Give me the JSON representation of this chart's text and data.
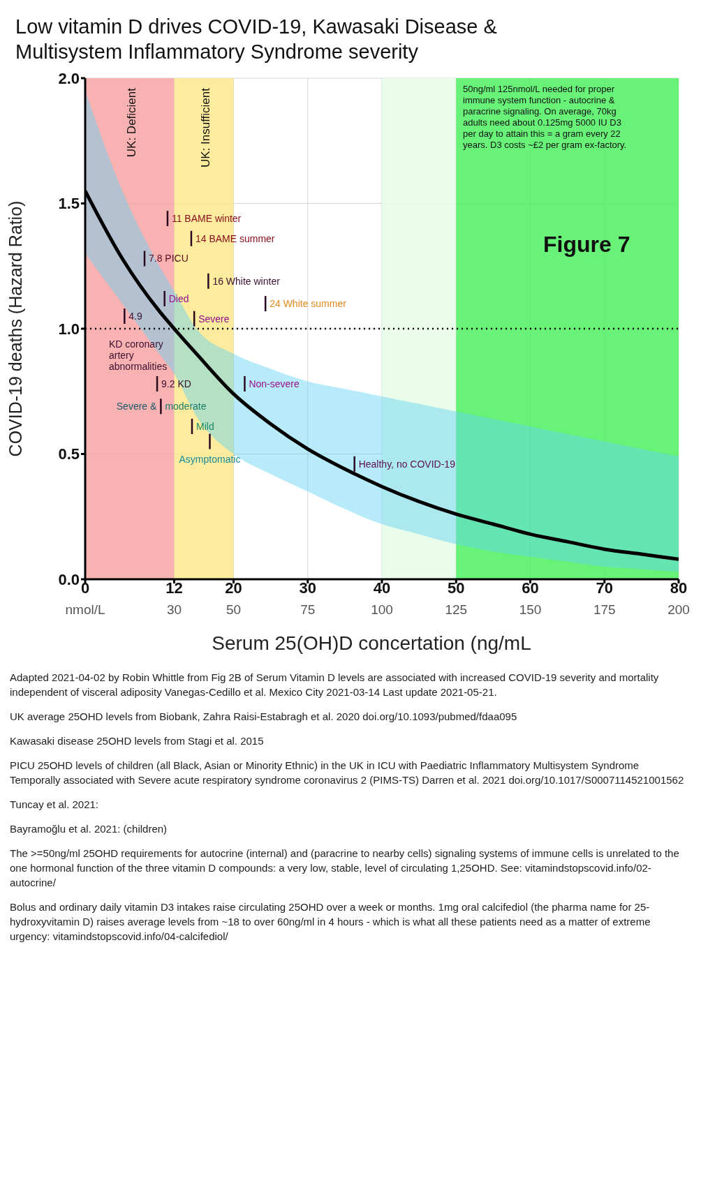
{
  "chart_data": {
    "type": "line",
    "title": "Low vitamin D drives COVID-19, Kawasaki Disease & Multisystem Inflammatory Syndrome severity",
    "xlabel": "Serum 25(OH)D concertation (ng/mL",
    "ylabel": "COVID-19 deaths (Hazard Ratio)",
    "xlim": [
      0,
      80
    ],
    "xticks": [
      0,
      12,
      20,
      30,
      40,
      50,
      60,
      70,
      80
    ],
    "x2lim": [
      0,
      200
    ],
    "x2ticks": [
      {
        "value": 0,
        "label": "nmol/L"
      },
      30,
      50,
      75,
      100,
      125,
      150,
      175,
      200
    ],
    "ylim": [
      0,
      2
    ],
    "yticks": [
      {
        "value": 0,
        "label": "0.0"
      },
      {
        "value": 0.5,
        "label": "0.5"
      },
      {
        "value": 1,
        "label": "1.0"
      },
      {
        "value": 1.5,
        "label": "1.5"
      },
      {
        "value": 2,
        "label": "2.0"
      }
    ],
    "grid": true,
    "marker": "none",
    "line_style": "solid",
    "series": [
      {
        "color": "#000000",
        "x": [
          0,
          5,
          10,
          12,
          15,
          20,
          25,
          30,
          35,
          40,
          45,
          50,
          55,
          60,
          65,
          70,
          75,
          80
        ],
        "values": [
          1.55,
          1.28,
          1.07,
          1.0,
          0.9,
          0.74,
          0.62,
          0.52,
          0.44,
          0.37,
          0.31,
          0.26,
          0.22,
          0.18,
          0.15,
          0.12,
          0.1,
          0.08
        ],
        "lower": [
          1.3,
          1.1,
          0.9,
          0.82,
          0.65,
          0.5,
          0.42,
          0.35,
          0.28,
          0.22,
          0.18,
          0.14,
          0.11,
          0.09,
          0.07,
          0.05,
          0.04,
          0.03
        ],
        "upper": [
          1.95,
          1.55,
          1.25,
          1.15,
          1.0,
          0.9,
          0.84,
          0.79,
          0.76,
          0.73,
          0.7,
          0.67,
          0.64,
          0.61,
          0.58,
          0.55,
          0.52,
          0.49
        ]
      }
    ],
    "bands": [
      {
        "axis": "x",
        "from": 0,
        "to": 12,
        "label": "UK: Deficient",
        "color": "#f8a5a5"
      },
      {
        "axis": "x",
        "from": 12,
        "to": 20,
        "label": "UK: Insufficient",
        "color": "#fde98c"
      },
      {
        "axis": "x",
        "from": 40,
        "to": 50,
        "color": "#e6fbe6"
      },
      {
        "axis": "x",
        "from": 50,
        "to": 80,
        "color": "#4ef060"
      }
    ],
    "ref_lines": [
      {
        "axis": "y",
        "value": 1,
        "line_style": "dotted",
        "color": "#000000"
      }
    ],
    "annotations": [
      "50ng/ml 125nmol/L needed for proper immune system function - autocrine & paracrine signaling. On average, 70kg adults need about 0.125mg 5000 IU D3 per day to attain this = a gram every 22 years. D3 costs ~£2 per gram ex-factory.",
      "Figure 7",
      "11 BAME winter",
      "14 BAME summer",
      "7.8 PICU",
      "16 White winter",
      "24 White summer",
      "Died",
      "Severe",
      "4.9",
      "KD coronary artery abnormalities",
      "9.2 KD",
      "Severe &",
      "moderate",
      "Mild",
      "Asymptomatic",
      "Non-severe",
      "Healthy, no COVID-19",
      "Adapted 2021-04-02 by Robin Whittle from Fig 2B of Serum Vitamin D levels are associated with increased COVID-19 severity and mortality independent of visceral adiposity Vanegas-Cedillo et al. Mexico City 2021-03-14 Last update 2021-05-21.",
      "UK average 25OHD levels from Biobank, Zahra Raisi-Estabragh et al. 2020 doi.org/10.1093/pubmed/fdaa095",
      "Kawasaki disease 25OHD levels from Stagi et al. 2015",
      "PICU 25OHD levels of children (all Black, Asian or Minority Ethnic) in the UK in ICU with Paediatric Inflammatory Multisystem Syndrome Temporally associated with Severe acute respiratory syndrome coronavirus 2 (PIMS-TS) Darren et al. 2021 doi.org/10.1017/S0007114521001562",
      "Tuncay et al. 2021:",
      "Bayramoğlu et al. 2021: (children)",
      "The >=50ng/ml 25OHD requirements for autocrine (internal) and (paracrine to nearby cells) signaling systems of immune cells is unrelated to the one hormonal function of the three vitamin D compounds: a very low, stable, level of circulating 1,25OHD. See: vitamindstopscovid.info/02-autocrine/",
      "Bolus and ordinary daily vitamin D3 intakes raise circulating 25OHD over a week or months. 1mg oral calcifediol (the pharma name for 25-hydroxyvitamin D) raises average levels from ~18 to over 60ng/ml in 4 hours - which is what all these patients need as a matter of extreme urgency: vitamindstopscovid.info/04-calcifediol/"
    ]
  }
}
